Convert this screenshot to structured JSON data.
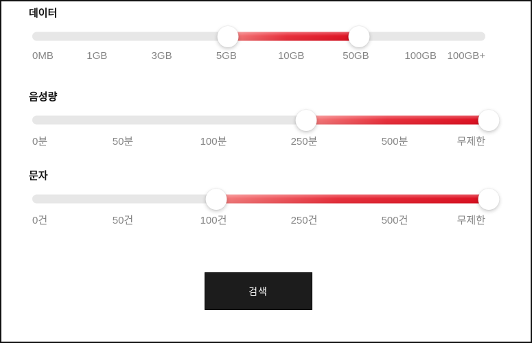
{
  "page": {
    "background": "#ffffff",
    "border_color": "#121212"
  },
  "colors": {
    "track": "#e7e7e7",
    "range_fill_light": "#f58080",
    "range_fill_dark": "#dd1021",
    "handle": "#ffffff",
    "section_label_text": "#111111",
    "tick_text": "#858585",
    "button_background": "#1c1c1c",
    "button_text": "#ffffff"
  },
  "sliders": [
    {
      "id": "data",
      "label": "데이터",
      "ticks": [
        "0MB",
        "1GB",
        "3GB",
        "5GB",
        "10GB",
        "50GB",
        "100GB",
        "100GB+"
      ],
      "selected_min": "5GB",
      "selected_max": "50GB",
      "handle_min_pct": 43.2,
      "handle_max_pct": 72.1,
      "fill_start_pct": 43.2,
      "fill_end_pct": 72.1
    },
    {
      "id": "voice",
      "label": "음성량",
      "ticks": [
        "0분",
        "50분",
        "100분",
        "250분",
        "500분",
        "무제한"
      ],
      "selected_min": "250분",
      "selected_max": "무제한",
      "handle_min_pct": 60.5,
      "handle_max_pct": 100.8,
      "fill_start_pct": 60.5,
      "fill_end_pct": 100
    },
    {
      "id": "sms",
      "label": "문자",
      "ticks": [
        "0건",
        "50건",
        "100건",
        "250건",
        "500건",
        "무제한"
      ],
      "selected_min": "100건",
      "selected_max": "무제한",
      "handle_min_pct": 40.6,
      "handle_max_pct": 100.8,
      "fill_start_pct": 40.6,
      "fill_end_pct": 100
    }
  ],
  "button": {
    "label": "검색"
  }
}
